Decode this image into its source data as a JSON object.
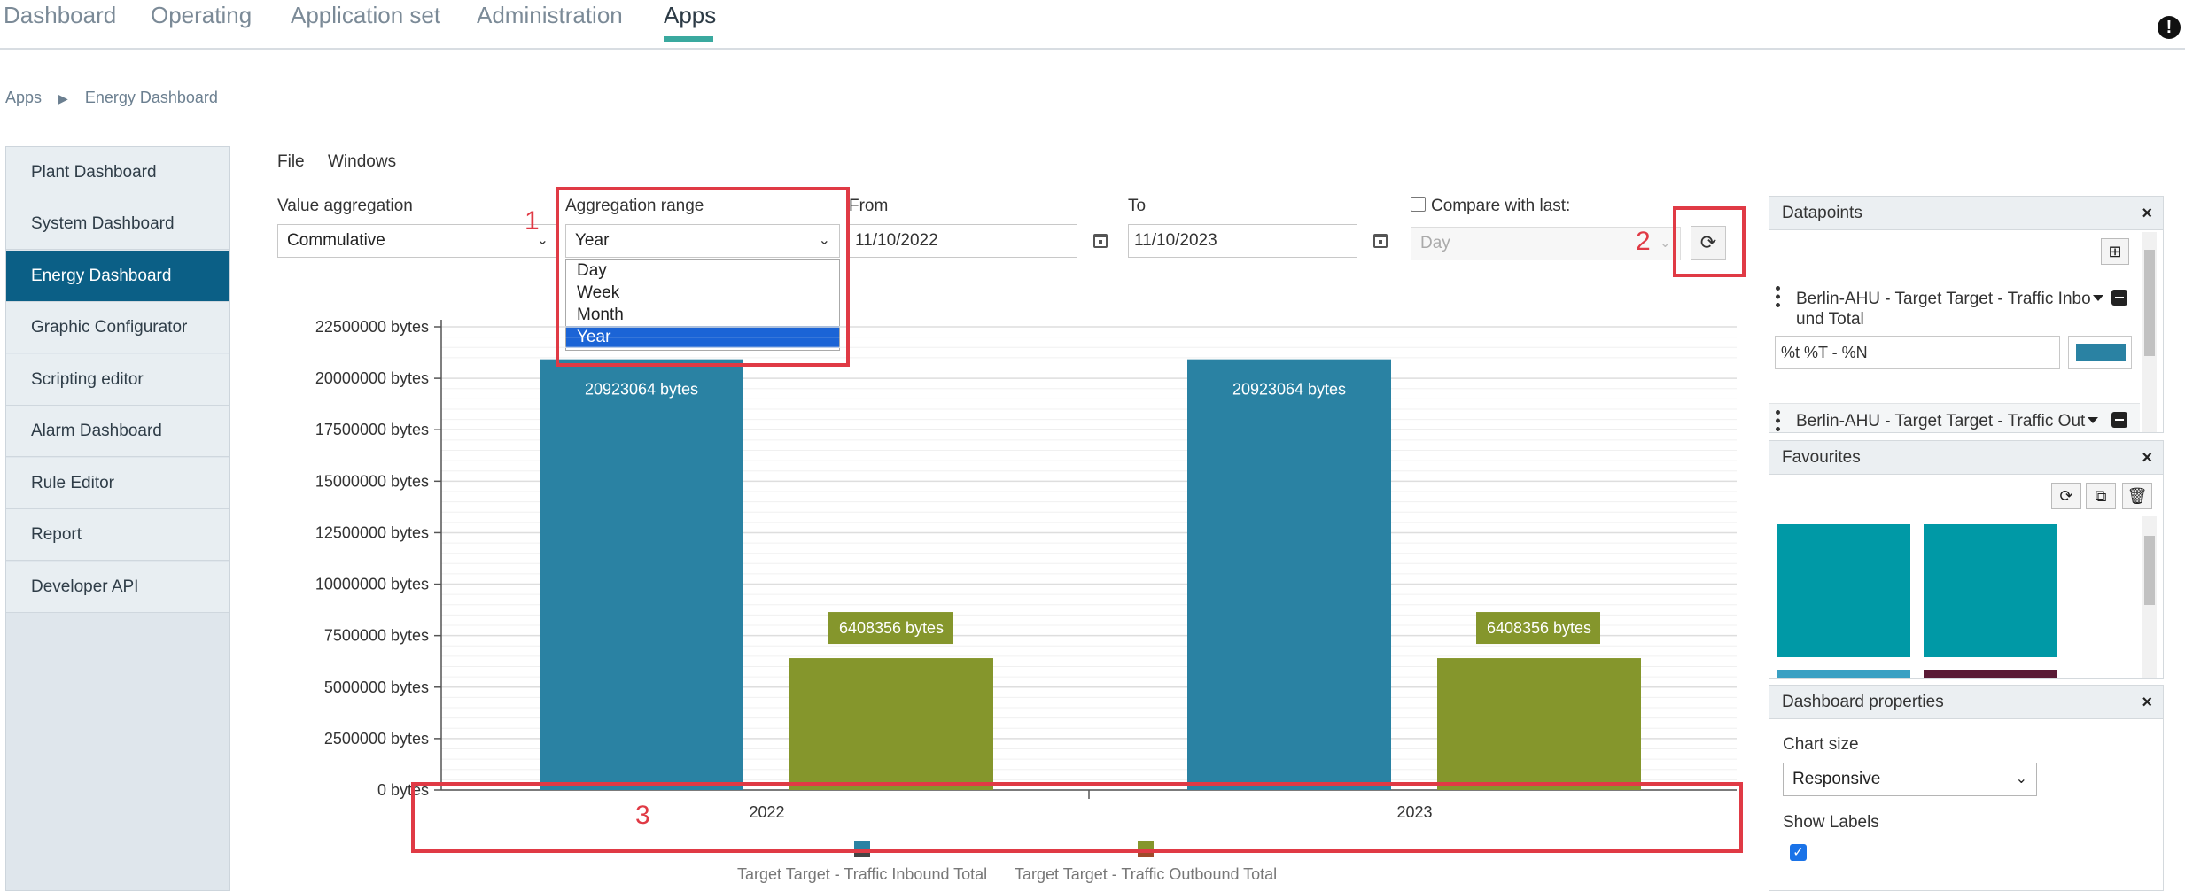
{
  "nav": {
    "tabs": [
      "Dashboard",
      "Operating",
      "Application set",
      "Administration",
      "Apps"
    ],
    "active": "Apps",
    "alert_icon": "exclamation-icon",
    "alert_glyph": "!"
  },
  "breadcrumb": {
    "root": "Apps",
    "separator": "▶",
    "current": "Energy Dashboard"
  },
  "sidebar": {
    "items": [
      {
        "label": "Plant Dashboard"
      },
      {
        "label": "System Dashboard"
      },
      {
        "label": "Energy Dashboard"
      },
      {
        "label": "Graphic Configurator"
      },
      {
        "label": "Scripting editor"
      },
      {
        "label": "Alarm Dashboard"
      },
      {
        "label": "Rule Editor"
      },
      {
        "label": "Report"
      },
      {
        "label": "Developer API"
      }
    ],
    "active_index": 2
  },
  "menu": {
    "file": "File",
    "windows": "Windows"
  },
  "controls": {
    "value_aggregation": {
      "label": "Value aggregation",
      "value": "Commulative"
    },
    "aggregation_range": {
      "label": "Aggregation range",
      "value": "Year",
      "options": [
        "Day",
        "Week",
        "Month",
        "Year"
      ],
      "selected": "Year"
    },
    "from": {
      "label": "From",
      "value": "11/10/2022"
    },
    "to": {
      "label": "To",
      "value": "11/10/2023"
    },
    "compare": {
      "label": "Compare with last:",
      "value": "Day",
      "checked": false
    },
    "refresh_icon": "refresh-icon"
  },
  "annotations": [
    "1",
    "2",
    "3"
  ],
  "chart_data": {
    "type": "bar",
    "categories": [
      "2022",
      "2023"
    ],
    "series": [
      {
        "name": "Target Target - Traffic Inbound Total",
        "values": [
          20923064,
          20923064
        ],
        "color": "#2a82a3",
        "labels": [
          "20923064 bytes",
          "20923064 bytes"
        ]
      },
      {
        "name": "Target Target - Traffic Outbound Total",
        "values": [
          6408356,
          6408356
        ],
        "color": "#85962c",
        "labels": [
          "6408356 bytes",
          "6408356 bytes"
        ]
      }
    ],
    "ylim": [
      0,
      22500000
    ],
    "yticks": [
      "0 bytes",
      "2500000 bytes",
      "5000000 bytes",
      "7500000 bytes",
      "10000000 bytes",
      "12500000 bytes",
      "15000000 bytes",
      "17500000 bytes",
      "20000000 bytes",
      "22500000 bytes"
    ],
    "grid": true,
    "legend": "bottom"
  },
  "panels": {
    "datapoints": {
      "title": "Datapoints",
      "close": "×",
      "add_icon": "plus-icon",
      "items": [
        {
          "label_line1": "Berlin-AHU - Target Target - Traffic Inbo",
          "label_line2": "und Total",
          "format": "%t %T - %N",
          "color": "#2a82a3"
        },
        {
          "label_line1": "Berlin-AHU - Target Target - Traffic Out"
        }
      ]
    },
    "favourites": {
      "title": "Favourites",
      "close": "×",
      "tiles": [
        "#0099a6",
        "#0099a6",
        "#3aa0c3",
        "#5a1a35"
      ]
    },
    "properties": {
      "title": "Dashboard properties",
      "close": "×",
      "chart_size_label": "Chart size",
      "chart_size_value": "Responsive",
      "show_labels_label": "Show Labels",
      "show_labels_checked": true
    }
  }
}
